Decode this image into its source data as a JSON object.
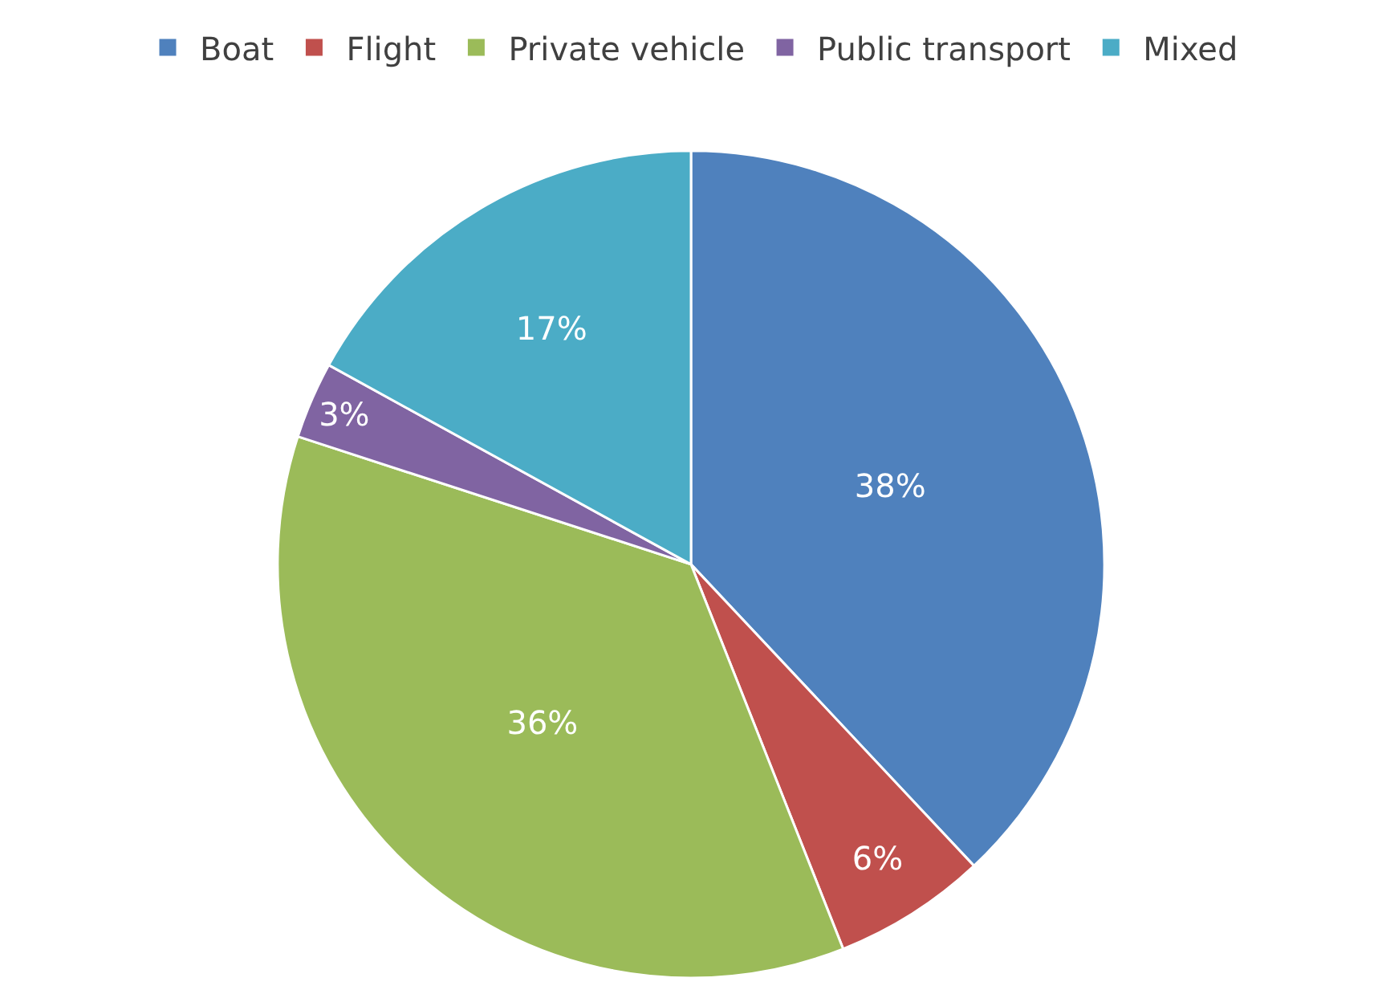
{
  "chart_data": {
    "type": "pie",
    "categories": [
      "Boat",
      "Flight",
      "Private vehicle",
      "Public transport",
      "Mixed"
    ],
    "values": [
      38,
      6,
      36,
      3,
      17
    ],
    "colors": [
      "#4f81bd",
      "#c0504d",
      "#9bbb59",
      "#8064a2",
      "#4bacc6"
    ],
    "value_labels": [
      "38%",
      "6%",
      "36%",
      "3%",
      "17%"
    ],
    "legend": "top"
  }
}
